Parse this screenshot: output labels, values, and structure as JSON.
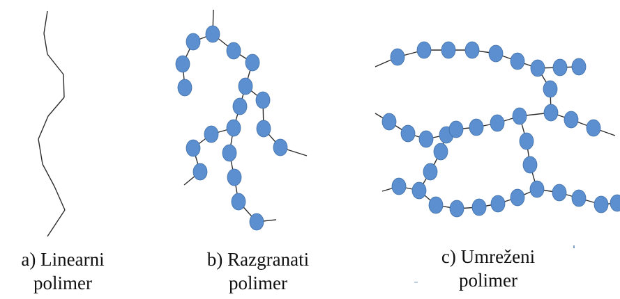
{
  "captions": {
    "a": {
      "line1": "a) Linearni",
      "line2": "polimer"
    },
    "b": {
      "line1": "b) Razgranati",
      "line2": "polimer"
    },
    "c": {
      "line1": "c) Umreženi",
      "line2": "polimer"
    }
  },
  "colors": {
    "monomer_fill": "#5b8fcf",
    "monomer_stroke": "#3f6fa8",
    "chain_line": "#2b2b2b",
    "text": "#111111"
  }
}
